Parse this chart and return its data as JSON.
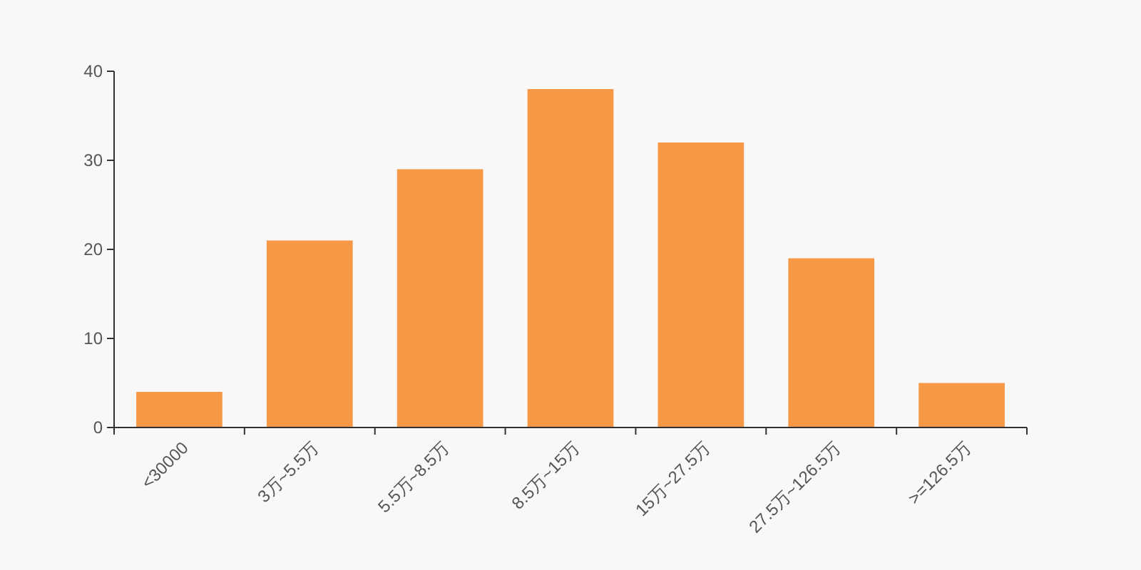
{
  "chart_data": {
    "type": "bar",
    "categories": [
      "<30000",
      "3万~5.5万",
      "5.5万~8.5万",
      "8.5万~15万",
      "15万~27.5万",
      "27.5万~126.5万",
      ">=126.5万"
    ],
    "values": [
      4,
      21,
      29,
      38,
      32,
      19,
      5
    ],
    "color": "#f79846",
    "ylim": [
      0,
      40
    ],
    "yticks": [
      0,
      10,
      20,
      30,
      40
    ],
    "grid": false
  }
}
